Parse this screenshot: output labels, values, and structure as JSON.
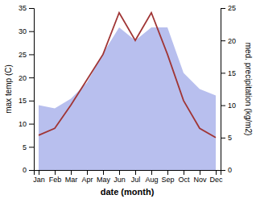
{
  "chart_data": {
    "type": "line",
    "categories": [
      "Jan",
      "Feb",
      "Mar",
      "Apr",
      "May",
      "Jun",
      "Jul",
      "Aug",
      "Sep",
      "Oct",
      "Nov",
      "Dec"
    ],
    "series": [
      {
        "type": "area",
        "axis": "y2",
        "color": "#b8bfee",
        "values": [
          10.0,
          9.5,
          11.0,
          13.5,
          18.0,
          22.0,
          20.0,
          22.0,
          22.0,
          15.0,
          12.5,
          11.5
        ]
      },
      {
        "type": "line",
        "color": "#a03535",
        "values": [
          7.5,
          9.0,
          14.0,
          19.5,
          25.0,
          34.0,
          28.0,
          34.0,
          25.0,
          15.0,
          9.0,
          7.0
        ]
      }
    ],
    "xlabel": "date (month)",
    "ylabel": "max temp (C)",
    "y2label": "med. precipitation (kg/m2)",
    "ylim": [
      0,
      35
    ],
    "yticks": [
      0,
      5,
      10,
      15,
      20,
      25,
      30,
      35
    ],
    "y2lim": [
      0,
      25
    ],
    "y2ticks": [
      0,
      5,
      10,
      15,
      20,
      25
    ],
    "grid": false
  }
}
